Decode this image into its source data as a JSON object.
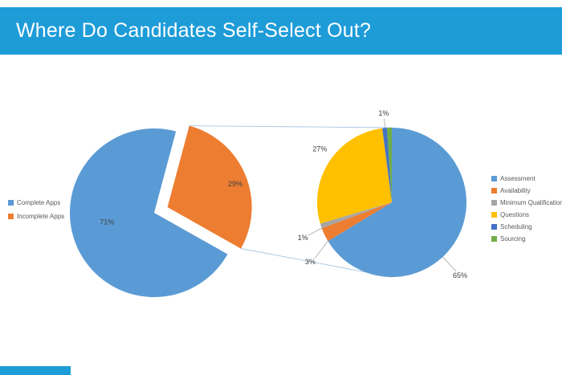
{
  "slide": {
    "title": "Where Do Candidates Self-Select Out?",
    "accent_color": "#1E9CD8"
  },
  "chart_data": [
    {
      "type": "pie",
      "name": "application-completion-pie",
      "title": "",
      "categories": [
        "Complete Apps",
        "Incomplete Apps"
      ],
      "values": [
        71,
        29
      ],
      "value_labels": [
        "71%",
        "29%"
      ],
      "colors": [
        "#5B9BD5",
        "#ED7D31"
      ],
      "legend_position": "left",
      "start_angle_deg": 15,
      "slice_order": [
        1,
        0
      ],
      "exploded_index": 1,
      "labels_layout": {
        "placement": "inside",
        "overrides": {
          "0": {
            "angle": 259,
            "rf": 0.57
          },
          "1": {
            "angle": 71,
            "rf": 0.85
          }
        }
      }
    },
    {
      "type": "pie",
      "name": "incomplete-apps-breakdown-pie",
      "title": "",
      "categories": [
        "Assessment",
        "Availability",
        "Minimum Qualifications",
        "Questions",
        "Scheduling",
        "Sourcing"
      ],
      "values": [
        65,
        3,
        1,
        27,
        1,
        1
      ],
      "value_labels": [
        "65%",
        "3%",
        "1%",
        "27%",
        "1%",
        ""
      ],
      "colors": [
        "#5B9BD5",
        "#ED7D31",
        "#A5A5A5",
        "#FFC000",
        "#4472C4",
        "#70AD47"
      ],
      "legend_position": "right",
      "start_angle_deg": 0,
      "labels_layout": {
        "placement": "outside",
        "overrides": {
          "0": {
            "angle": 137,
            "rf": 1.34,
            "leader": true
          },
          "1": {
            "angle": 234,
            "rf": 1.35,
            "leader": true
          },
          "2": {
            "angle": 248.4,
            "rf": 1.28,
            "leader": true
          },
          "3": {
            "angle": 306.6,
            "rf": 1.2
          },
          "4": {
            "angle": 354.8,
            "rf": 1.2,
            "leader": true
          }
        }
      }
    }
  ]
}
